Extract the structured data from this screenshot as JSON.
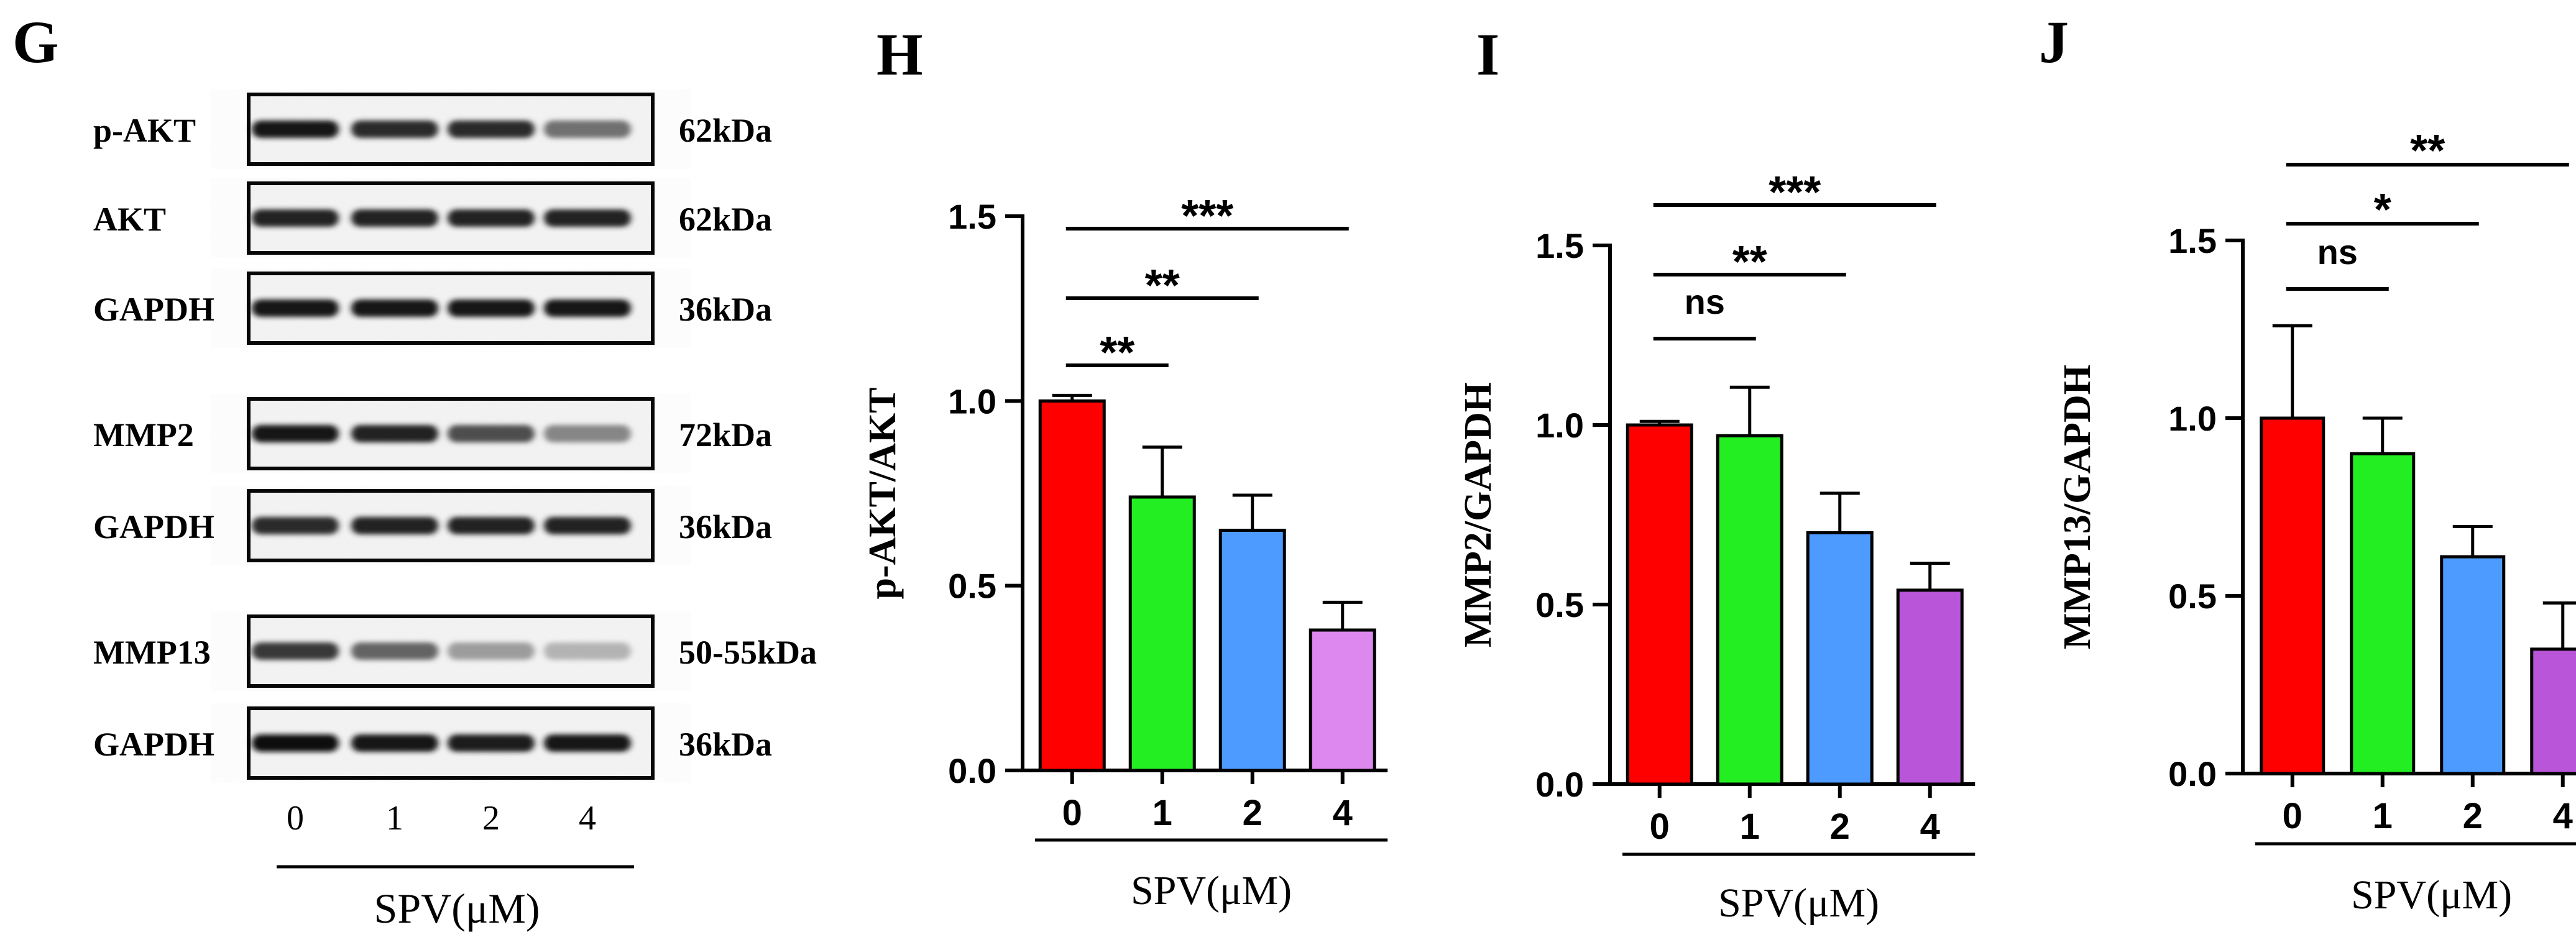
{
  "panels": {
    "g": "G",
    "h": "H",
    "i": "I",
    "j": "J"
  },
  "blot": {
    "rows": [
      {
        "label": "p-AKT",
        "size": "62kDa",
        "intensity": [
          0.95,
          0.85,
          0.85,
          0.55
        ]
      },
      {
        "label": "AKT",
        "size": "62kDa",
        "intensity": [
          0.9,
          0.9,
          0.9,
          0.9
        ]
      },
      {
        "label": "GAPDH",
        "size": "36kDa",
        "intensity": [
          0.95,
          0.95,
          0.95,
          0.95
        ]
      },
      {
        "label": "MMP2",
        "size": "72kDa",
        "intensity": [
          0.95,
          0.9,
          0.7,
          0.45
        ]
      },
      {
        "label": "GAPDH",
        "size": "36kDa",
        "intensity": [
          0.85,
          0.9,
          0.9,
          0.9
        ]
      },
      {
        "label": "MMP13",
        "size": "50-55kDa",
        "intensity": [
          0.8,
          0.6,
          0.35,
          0.25
        ]
      },
      {
        "label": "GAPDH",
        "size": "36kDa",
        "intensity": [
          0.98,
          0.95,
          0.92,
          0.95
        ]
      }
    ],
    "lanes": [
      "0",
      "1",
      "2",
      "4"
    ],
    "xlabel": "SPV(μM)"
  },
  "colors": {
    "red": "#ff0000",
    "green": "#22ee22",
    "blue": "#4d9bff",
    "violet": "#dd88ee",
    "purple": "#b955d8"
  },
  "chart_data": [
    {
      "type": "bar",
      "panel": "H",
      "categories": [
        "0",
        "1",
        "2",
        "4"
      ],
      "values": [
        1.0,
        0.74,
        0.65,
        0.38
      ],
      "errors": [
        0.015,
        0.135,
        0.095,
        0.075
      ],
      "colors": [
        "#ff0000",
        "#22ee22",
        "#4d9bff",
        "#dd88ee"
      ],
      "ylabel": "p-AKT/AKT",
      "xlabel": "SPV(μM)",
      "ylim": [
        0,
        1.5
      ],
      "yticks": [
        "0.0",
        "0.5",
        "1.0",
        "1.5"
      ],
      "significance": [
        {
          "from": "0",
          "to": "1",
          "label": "**"
        },
        {
          "from": "0",
          "to": "2",
          "label": "**"
        },
        {
          "from": "0",
          "to": "4",
          "label": "***"
        }
      ]
    },
    {
      "type": "bar",
      "panel": "I",
      "categories": [
        "0",
        "1",
        "2",
        "4"
      ],
      "values": [
        1.0,
        0.97,
        0.7,
        0.54
      ],
      "errors": [
        0.01,
        0.135,
        0.11,
        0.075
      ],
      "colors": [
        "#ff0000",
        "#22ee22",
        "#4d9bff",
        "#b955d8"
      ],
      "ylabel": "MMP2/GAPDH",
      "xlabel": "SPV(μM)",
      "ylim": [
        0,
        1.5
      ],
      "yticks": [
        "0.0",
        "0.5",
        "1.0",
        "1.5"
      ],
      "significance": [
        {
          "from": "0",
          "to": "1",
          "label": "ns"
        },
        {
          "from": "0",
          "to": "2",
          "label": "**"
        },
        {
          "from": "0",
          "to": "4",
          "label": "***"
        }
      ]
    },
    {
      "type": "bar",
      "panel": "J",
      "categories": [
        "0",
        "1",
        "2",
        "4"
      ],
      "values": [
        1.0,
        0.9,
        0.61,
        0.35
      ],
      "errors": [
        0.26,
        0.1,
        0.085,
        0.13
      ],
      "colors": [
        "#ff0000",
        "#22ee22",
        "#4d9bff",
        "#b955d8"
      ],
      "ylabel": "MMP13/GAPDH",
      "xlabel": "SPV(μM)",
      "ylim": [
        0,
        1.5
      ],
      "yticks": [
        "0.0",
        "0.5",
        "1.0",
        "1.5"
      ],
      "significance": [
        {
          "from": "0",
          "to": "1",
          "label": "ns"
        },
        {
          "from": "0",
          "to": "2",
          "label": "*"
        },
        {
          "from": "0",
          "to": "4",
          "label": "**"
        }
      ]
    }
  ]
}
